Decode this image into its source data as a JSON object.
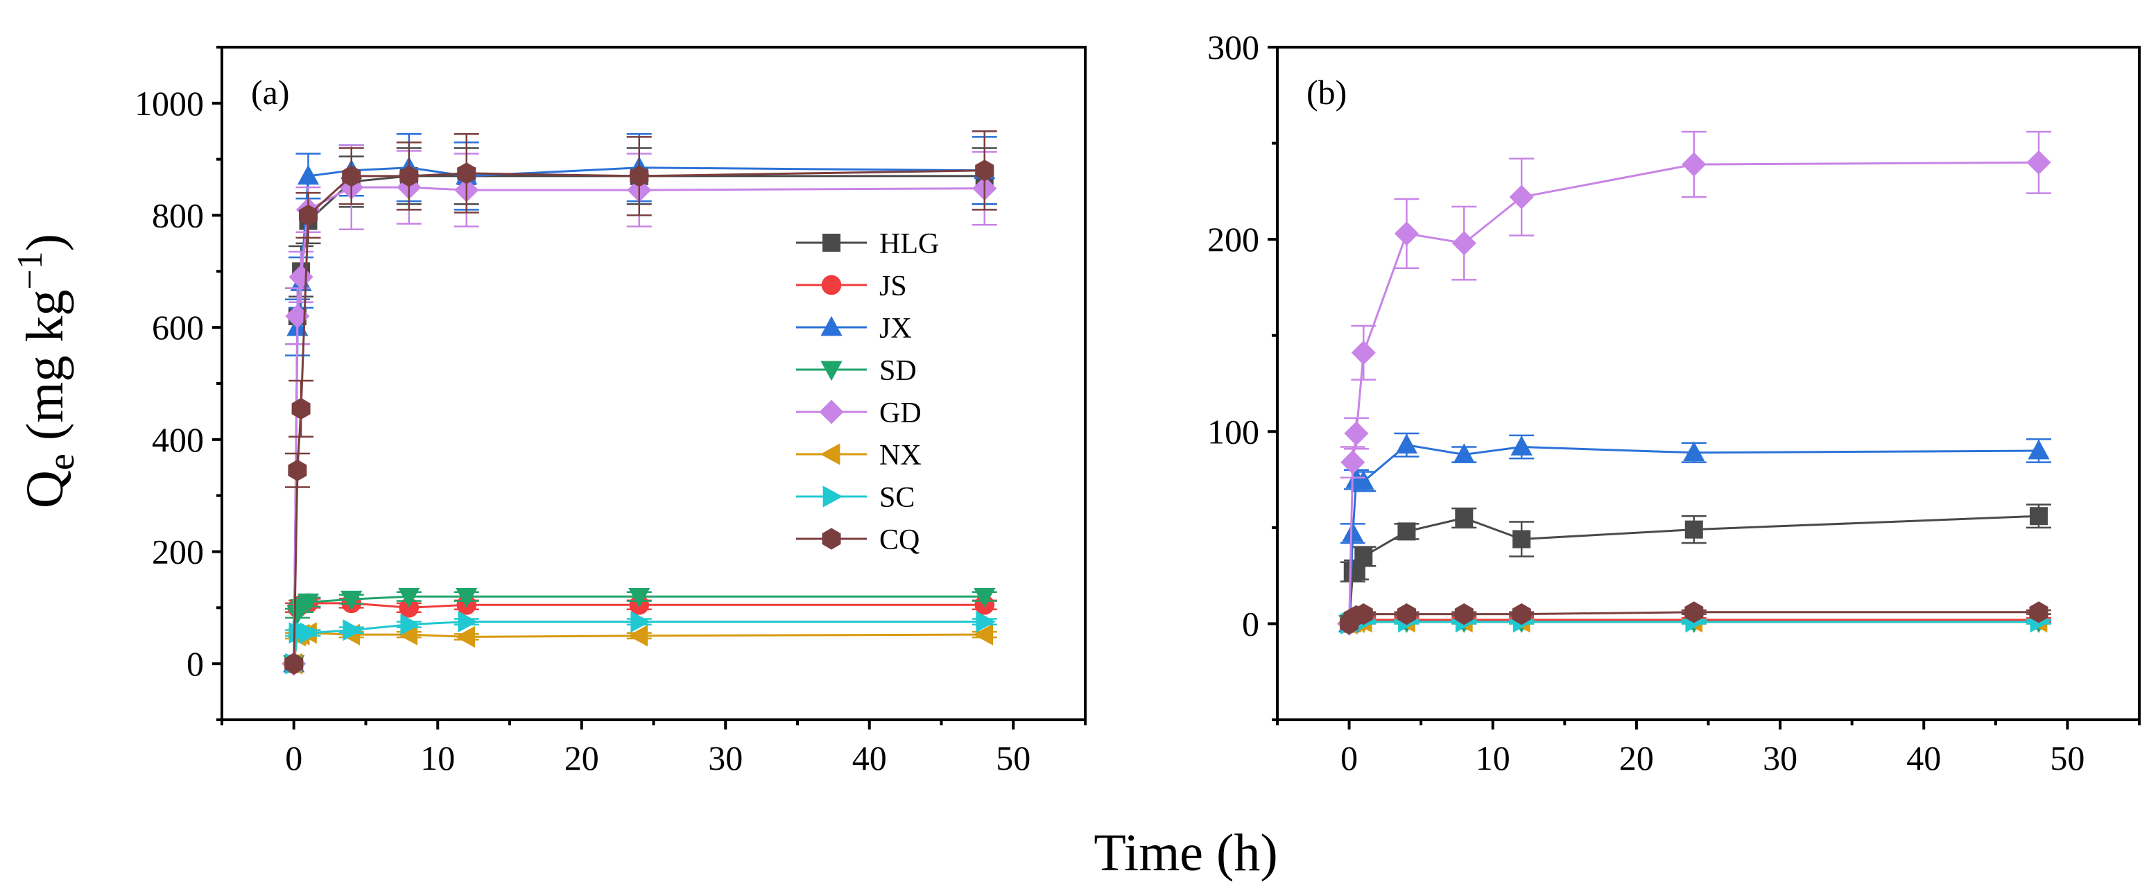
{
  "figure": {
    "xlabel": "Time (h)",
    "ylabel_main": "Q",
    "ylabel_sub": "e",
    "ylabel_rest": " (mg kg",
    "ylabel_sup": "−1",
    "ylabel_close": ")"
  },
  "colors": {
    "HLG": "#4a4a4a",
    "JS": "#f03c3c",
    "JX": "#2a72d8",
    "SD": "#1fa46a",
    "GD": "#c884e6",
    "NX": "#d79a10",
    "SC": "#20c8d2",
    "CQ": "#7a3e3e"
  },
  "chart_data": [
    {
      "type": "line",
      "panel_label": "(a)",
      "xlim": [
        -5,
        55
      ],
      "ylim": [
        -100,
        1100
      ],
      "xticks": [
        0,
        10,
        20,
        30,
        40,
        50
      ],
      "yticks": [
        0,
        200,
        400,
        600,
        800,
        1000
      ],
      "x": [
        0,
        0.25,
        0.5,
        1,
        4,
        8,
        12,
        24,
        48
      ],
      "legend_position": "right-center",
      "series": [
        {
          "name": "HLG",
          "marker": "square",
          "values": [
            0,
            620,
            700,
            790,
            860,
            870,
            870,
            870,
            870
          ],
          "errors": [
            0,
            50,
            45,
            40,
            45,
            50,
            50,
            50,
            50
          ]
        },
        {
          "name": "JS",
          "marker": "circle",
          "values": [
            0,
            100,
            105,
            108,
            108,
            100,
            105,
            105,
            105
          ],
          "errors": [
            0,
            8,
            8,
            8,
            8,
            8,
            8,
            8,
            8
          ]
        },
        {
          "name": "JX",
          "marker": "triangle-up",
          "values": [
            0,
            600,
            680,
            870,
            880,
            885,
            870,
            885,
            880
          ],
          "errors": [
            0,
            50,
            45,
            40,
            45,
            60,
            60,
            60,
            60
          ]
        },
        {
          "name": "SD",
          "marker": "triangle-down",
          "values": [
            0,
            90,
            100,
            110,
            115,
            120,
            120,
            120,
            120
          ],
          "errors": [
            0,
            8,
            8,
            8,
            8,
            8,
            8,
            8,
            8
          ]
        },
        {
          "name": "GD",
          "marker": "diamond",
          "values": [
            0,
            620,
            690,
            810,
            850,
            850,
            845,
            845,
            848
          ],
          "errors": [
            0,
            50,
            45,
            40,
            75,
            65,
            65,
            65,
            65
          ]
        },
        {
          "name": "NX",
          "marker": "triangle-left",
          "values": [
            0,
            50,
            52,
            55,
            52,
            52,
            48,
            50,
            52
          ],
          "errors": [
            0,
            5,
            5,
            5,
            5,
            5,
            5,
            5,
            5
          ]
        },
        {
          "name": "SC",
          "marker": "triangle-right",
          "values": [
            0,
            55,
            58,
            55,
            60,
            70,
            75,
            75,
            75
          ],
          "errors": [
            0,
            5,
            5,
            5,
            5,
            5,
            5,
            5,
            5
          ]
        },
        {
          "name": "CQ",
          "marker": "hexagon",
          "values": [
            0,
            345,
            455,
            800,
            870,
            870,
            875,
            870,
            880
          ],
          "errors": [
            0,
            30,
            50,
            40,
            50,
            60,
            70,
            70,
            70
          ]
        }
      ]
    },
    {
      "type": "line",
      "panel_label": "(b)",
      "xlim": [
        -5,
        55
      ],
      "ylim": [
        -50,
        300
      ],
      "xticks": [
        0,
        10,
        20,
        30,
        40,
        50
      ],
      "yticks": [
        0,
        100,
        200,
        300
      ],
      "x": [
        0,
        0.25,
        0.5,
        1,
        4,
        8,
        12,
        24,
        48
      ],
      "series": [
        {
          "name": "HLG",
          "marker": "square",
          "values": [
            0,
            27,
            28,
            35,
            48,
            55,
            44,
            49,
            56
          ],
          "errors": [
            0,
            5,
            5,
            5,
            4,
            5,
            9,
            7,
            6
          ]
        },
        {
          "name": "JS",
          "marker": "circle",
          "values": [
            0,
            2,
            2,
            2,
            2,
            2,
            2,
            2,
            2
          ],
          "errors": [
            0,
            1,
            1,
            1,
            1,
            1,
            1,
            1,
            1
          ]
        },
        {
          "name": "JX",
          "marker": "triangle-up",
          "values": [
            0,
            47,
            75,
            74,
            93,
            88,
            92,
            89,
            90
          ],
          "errors": [
            0,
            5,
            5,
            5,
            6,
            4,
            6,
            5,
            6
          ]
        },
        {
          "name": "SD",
          "marker": "triangle-down",
          "values": [
            0,
            1,
            1,
            1,
            1,
            1,
            1,
            1,
            1
          ],
          "errors": [
            0,
            1,
            1,
            1,
            1,
            1,
            1,
            1,
            1
          ]
        },
        {
          "name": "GD",
          "marker": "diamond",
          "values": [
            0,
            84,
            99,
            141,
            203,
            198,
            222,
            239,
            240
          ],
          "errors": [
            0,
            8,
            8,
            14,
            18,
            19,
            20,
            17,
            16
          ]
        },
        {
          "name": "NX",
          "marker": "triangle-left",
          "values": [
            0,
            1,
            1,
            1,
            1,
            1,
            1,
            1,
            1
          ],
          "errors": [
            0,
            1,
            1,
            1,
            1,
            1,
            1,
            1,
            1
          ]
        },
        {
          "name": "SC",
          "marker": "triangle-right",
          "values": [
            0,
            1,
            1,
            1,
            1,
            1,
            1,
            1,
            1
          ],
          "errors": [
            0,
            1,
            1,
            1,
            1,
            1,
            1,
            1,
            1
          ]
        },
        {
          "name": "CQ",
          "marker": "hexagon",
          "values": [
            0,
            3,
            4,
            5,
            5,
            5,
            5,
            6,
            6
          ],
          "errors": [
            0,
            1,
            1,
            1,
            1,
            1,
            1,
            1,
            1
          ]
        }
      ]
    }
  ]
}
